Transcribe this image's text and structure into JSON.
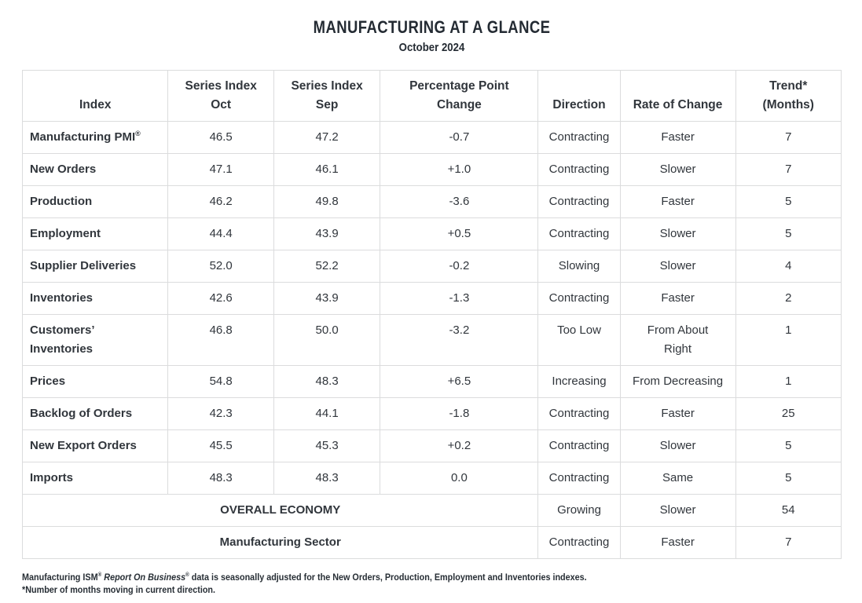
{
  "header": {
    "title": "MANUFACTURING AT A GLANCE",
    "subtitle": "October 2024"
  },
  "table": {
    "columns": [
      "Index",
      "Series Index\nOct",
      "Series Index\nSep",
      "Percentage Point\nChange",
      "Direction",
      "Rate of Change",
      "Trend*\n(Months)"
    ],
    "column_widths_pct": [
      17.8,
      12.9,
      13.0,
      19.3,
      10.0,
      14.1,
      12.9
    ],
    "rows": [
      {
        "index": "Manufacturing PMI",
        "index_sup": "®",
        "oct": "46.5",
        "sep": "47.2",
        "change": "-0.7",
        "direction": "Contracting",
        "rate": "Faster",
        "trend": "7"
      },
      {
        "index": "New Orders",
        "oct": "47.1",
        "sep": "46.1",
        "change": "+1.0",
        "direction": "Contracting",
        "rate": "Slower",
        "trend": "7"
      },
      {
        "index": "Production",
        "oct": "46.2",
        "sep": "49.8",
        "change": "-3.6",
        "direction": "Contracting",
        "rate": "Faster",
        "trend": "5"
      },
      {
        "index": "Employment",
        "oct": "44.4",
        "sep": "43.9",
        "change": "+0.5",
        "direction": "Contracting",
        "rate": "Slower",
        "trend": "5"
      },
      {
        "index": "Supplier Deliveries",
        "oct": "52.0",
        "sep": "52.2",
        "change": "-0.2",
        "direction": "Slowing",
        "rate": "Slower",
        "trend": "4"
      },
      {
        "index": "Inventories",
        "oct": "42.6",
        "sep": "43.9",
        "change": "-1.3",
        "direction": "Contracting",
        "rate": "Faster",
        "trend": "2"
      },
      {
        "index": "Customers’\nInventories",
        "oct": "46.8",
        "sep": "50.0",
        "change": "-3.2",
        "direction": "Too Low",
        "rate": "From About\nRight",
        "trend": "1"
      },
      {
        "index": "Prices",
        "oct": "54.8",
        "sep": "48.3",
        "change": "+6.5",
        "direction": "Increasing",
        "rate": "From Decreasing",
        "trend": "1"
      },
      {
        "index": "Backlog of Orders",
        "oct": "42.3",
        "sep": "44.1",
        "change": "-1.8",
        "direction": "Contracting",
        "rate": "Faster",
        "trend": "25"
      },
      {
        "index": "New Export Orders",
        "oct": "45.5",
        "sep": "45.3",
        "change": "+0.2",
        "direction": "Contracting",
        "rate": "Slower",
        "trend": "5"
      },
      {
        "index": "Imports",
        "oct": "48.3",
        "sep": "48.3",
        "change": "0.0",
        "direction": "Contracting",
        "rate": "Same",
        "trend": "5"
      }
    ],
    "summary_rows": [
      {
        "label": "OVERALL ECONOMY",
        "direction": "Growing",
        "rate": "Slower",
        "trend": "54"
      },
      {
        "label": "Manufacturing Sector",
        "direction": "Contracting",
        "rate": "Faster",
        "trend": "7"
      }
    ]
  },
  "footnotes": {
    "seasonal_parts": [
      {
        "text": "Manufacturing ISM"
      },
      {
        "text": "®",
        "sup": true
      },
      {
        "text": " "
      },
      {
        "text": "Report On Business",
        "italic": true
      },
      {
        "text": "®",
        "sup": true
      },
      {
        "text": " data is seasonally adjusted for the New Orders, Production, Employment and Inventories indexes."
      }
    ],
    "trend_note": "*Number of months moving in current direction."
  },
  "colors": {
    "background": "#ffffff",
    "text": "#31363c",
    "title": "#242b33",
    "border": "#dbdcdd"
  }
}
